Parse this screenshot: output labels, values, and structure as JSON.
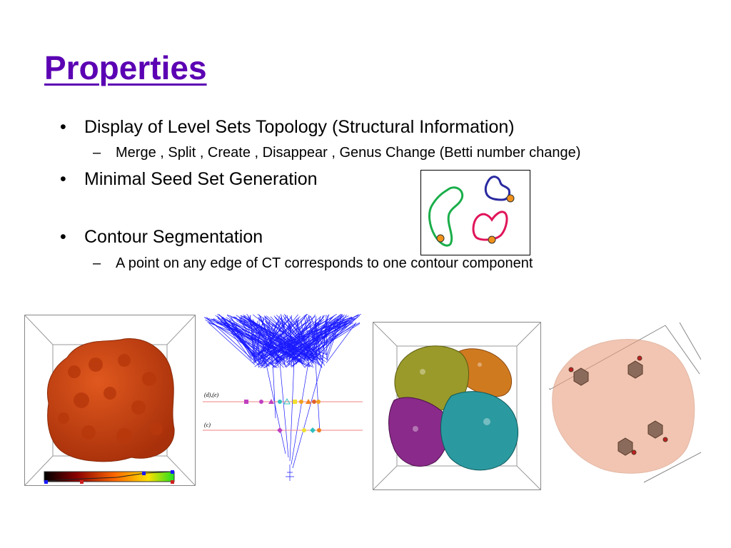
{
  "slide": {
    "title": "Properties",
    "bullets": [
      {
        "text": "Display of Level Sets Topology (Structural Information)",
        "sub": [
          "Merge , Split , Create , Disappear , Genus Change (Betti number change)"
        ]
      },
      {
        "text": "Minimal Seed Set Generation",
        "sub": []
      },
      {
        "text": "Contour Segmentation",
        "sub": [
          "A point on any edge of CT corresponds to one contour component"
        ]
      }
    ],
    "bullet_glyph": "•",
    "sub_glyph": "–"
  },
  "figures": {
    "contour_labels": [
      "(d),(e)",
      "(c)"
    ],
    "colors": {
      "title": "#5b00b3",
      "protein_red": "#c8400f",
      "tree_blue": "#1a1aff",
      "olive": "#9a9a2a",
      "teal": "#2a9aa0",
      "purple": "#8a2a8a",
      "orange": "#d07a20",
      "seed_point": "#f0901a"
    }
  }
}
